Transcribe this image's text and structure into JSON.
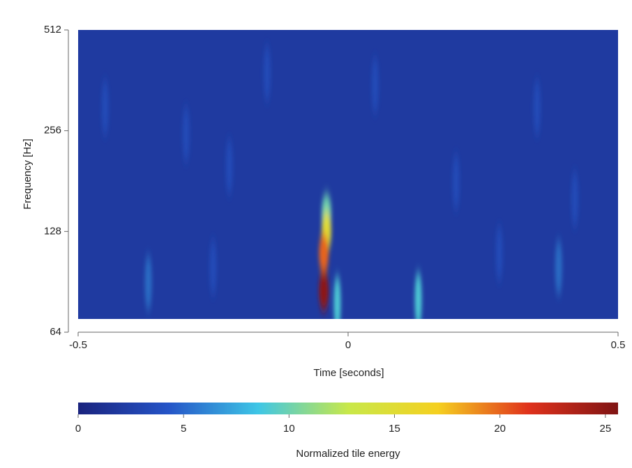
{
  "chart_data": {
    "type": "spectrogram",
    "xlabel": "Time [seconds]",
    "ylabel": "Frequency [Hz]",
    "colorbar_label": "Normalized tile energy",
    "xlim": [
      -0.5,
      0.5
    ],
    "xticks": [
      -0.5,
      0,
      0.5
    ],
    "ylim": [
      64,
      512
    ],
    "yticks": [
      64,
      128,
      256,
      512
    ],
    "ylog": true,
    "clim": [
      0,
      25.6
    ],
    "cticks": [
      0,
      5,
      10,
      15,
      20,
      25
    ],
    "colormap": [
      "#1a237e",
      "#2554c7",
      "#3ec6e6",
      "#c8e84a",
      "#f5d020",
      "#e0321c",
      "#7f1414"
    ],
    "background_energy": 2,
    "blobs": [
      {
        "time": -0.45,
        "frequency": 300,
        "energy": 4
      },
      {
        "time": -0.3,
        "frequency": 250,
        "energy": 4
      },
      {
        "time": -0.22,
        "frequency": 200,
        "energy": 4
      },
      {
        "time": 0.05,
        "frequency": 350,
        "energy": 4
      },
      {
        "time": 0.2,
        "frequency": 180,
        "energy": 4
      },
      {
        "time": 0.35,
        "frequency": 300,
        "energy": 4
      },
      {
        "time": 0.42,
        "frequency": 160,
        "energy": 4
      },
      {
        "time": -0.15,
        "frequency": 380,
        "energy": 4
      },
      {
        "time": 0.28,
        "frequency": 110,
        "energy": 4
      },
      {
        "time": -0.25,
        "frequency": 100,
        "energy": 4
      },
      {
        "time": -0.37,
        "frequency": 90,
        "energy": 6
      },
      {
        "time": 0.39,
        "frequency": 100,
        "energy": 6
      },
      {
        "time": -0.02,
        "frequency": 78,
        "energy": 9
      },
      {
        "time": 0.13,
        "frequency": 80,
        "energy": 9
      },
      {
        "time": -0.04,
        "frequency": 145,
        "energy": 10
      },
      {
        "time": -0.04,
        "frequency": 128,
        "energy": 15
      },
      {
        "time": -0.045,
        "frequency": 110,
        "energy": 20
      },
      {
        "time": -0.045,
        "frequency": 85,
        "energy": 25
      }
    ]
  }
}
